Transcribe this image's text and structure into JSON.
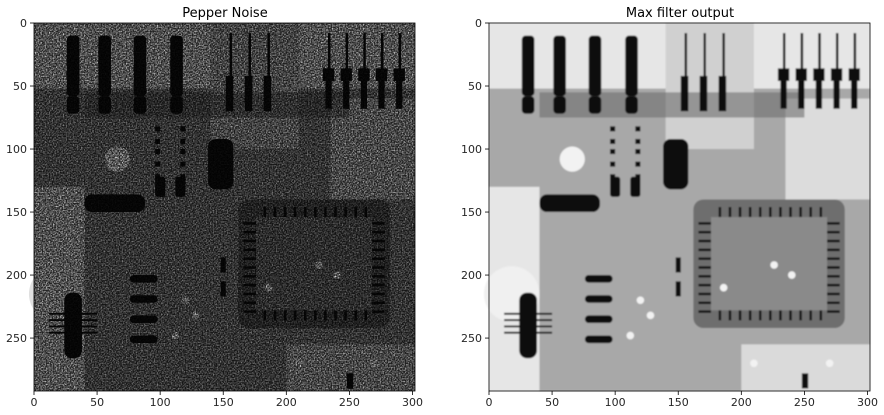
{
  "figure": {
    "panels": [
      {
        "id": "pepper",
        "title": "Pepper Noise",
        "image_variant": "pepper-noise",
        "xlim": [
          0,
          302
        ],
        "ylim": [
          0,
          292
        ],
        "xticks": [
          0,
          50,
          100,
          150,
          200,
          250,
          300
        ],
        "yticks": [
          0,
          50,
          100,
          150,
          200,
          250
        ]
      },
      {
        "id": "max",
        "title": "Max filter output",
        "image_variant": "max-filtered",
        "xlim": [
          0,
          302
        ],
        "ylim": [
          0,
          292
        ],
        "xticks": [
          0,
          50,
          100,
          150,
          200,
          250,
          300
        ],
        "yticks": [
          0,
          50,
          100,
          150,
          200,
          250
        ]
      }
    ],
    "colors": {
      "axis": "#000000",
      "tick_text": "#262626",
      "board_mid": "#8c8c8c",
      "board_light": "#d8d8d8",
      "board_dark": "#5a5a5a",
      "component_black": "#111111",
      "pad_white": "#f2f2f2"
    }
  }
}
